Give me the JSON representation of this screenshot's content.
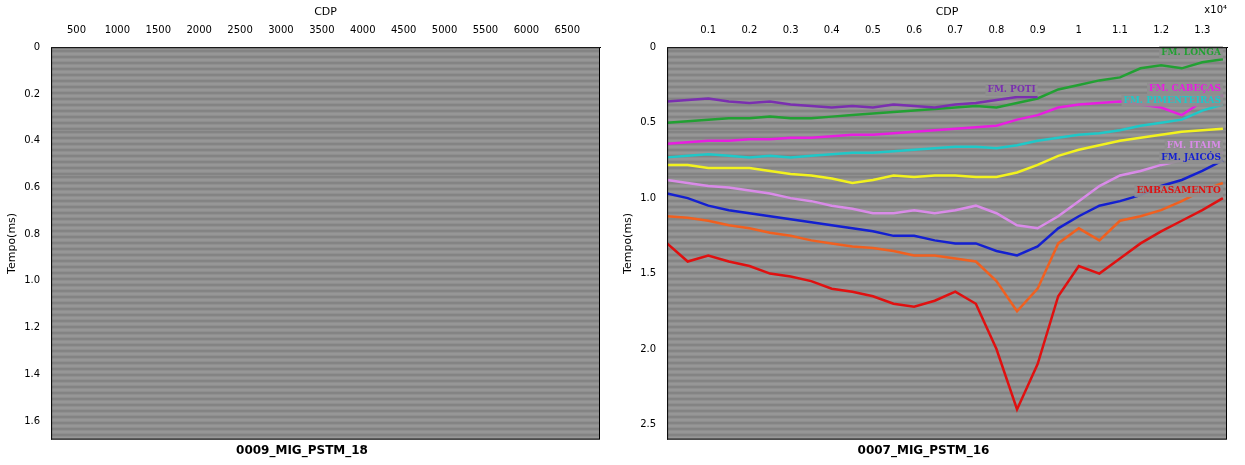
{
  "chart_data": [
    {
      "type": "seismic",
      "title": "0009_MIG_PSTM_18",
      "x_label": "CDP",
      "y_label": "Tempo(ms)",
      "xlim": [
        190,
        6900
      ],
      "xticks": [
        500,
        1000,
        1500,
        2000,
        2500,
        3000,
        3500,
        4000,
        4500,
        5000,
        5500,
        6000,
        6500
      ],
      "ylim": [
        0,
        1.68
      ],
      "yticks": [
        0,
        0.2,
        0.4,
        0.6,
        0.8,
        {
          "value": 1,
          "label": "1.0"
        },
        1.2,
        1.4,
        1.6
      ],
      "grid": false
    },
    {
      "type": "line",
      "title": "0007_MIG_PSTM_16",
      "x_label": "CDP",
      "y_label": "Tempo(ms)",
      "axis_multiplier": "x10⁴",
      "xlim": [
        0,
        1.36
      ],
      "xticks": [
        0.1,
        0.2,
        0.3,
        0.4,
        0.5,
        0.6,
        0.7,
        0.8,
        0.9,
        1,
        1.1,
        1.2,
        1.3
      ],
      "ylim": [
        0,
        2.6
      ],
      "yticks": [
        0,
        0.5,
        {
          "value": 1,
          "label": "1.0"
        },
        1.5,
        {
          "value": 2,
          "label": "2.0"
        },
        2.5
      ],
      "grid": false,
      "x": [
        0,
        0.05,
        0.1,
        0.15,
        0.2,
        0.25,
        0.3,
        0.35,
        0.4,
        0.45,
        0.5,
        0.55,
        0.6,
        0.65,
        0.7,
        0.75,
        0.8,
        0.85,
        0.9,
        0.95,
        1,
        1.05,
        1.1,
        1.15,
        1.2,
        1.25,
        1.3,
        1.35
      ],
      "series": [
        {
          "name": "FM. POTI",
          "color": "#7a2fb0",
          "values": [
            0.36,
            0.35,
            0.34,
            0.36,
            0.37,
            0.36,
            0.38,
            0.39,
            0.4,
            0.39,
            0.4,
            0.38,
            0.39,
            0.4,
            0.38,
            0.37,
            0.35,
            0.33,
            0.33,
            null,
            null,
            null,
            null,
            null,
            null,
            null,
            null,
            null
          ]
        },
        {
          "name": "FM. LONGA",
          "color": "#22a033",
          "values": [
            0.5,
            0.49,
            0.48,
            0.47,
            0.47,
            0.46,
            0.47,
            0.47,
            0.46,
            0.45,
            0.44,
            0.43,
            0.42,
            0.41,
            0.4,
            0.39,
            0.4,
            0.37,
            0.34,
            0.28,
            0.25,
            0.22,
            0.2,
            0.14,
            0.12,
            0.14,
            0.1,
            0.08
          ]
        },
        {
          "name": "FM. CABEÇAS",
          "color": "#e81ee0",
          "values": [
            0.64,
            0.63,
            0.62,
            0.62,
            0.61,
            0.61,
            0.6,
            0.6,
            0.59,
            0.58,
            0.58,
            0.57,
            0.56,
            0.55,
            0.54,
            0.53,
            0.52,
            0.48,
            0.45,
            0.4,
            0.38,
            0.37,
            0.36,
            0.38,
            0.4,
            0.45,
            0.36,
            0.32
          ]
        },
        {
          "name": "FM. PIMENTEIRAS",
          "color": "#1fc8c8",
          "values": [
            0.73,
            0.72,
            0.71,
            0.72,
            0.73,
            0.72,
            0.73,
            0.72,
            0.71,
            0.7,
            0.7,
            0.69,
            0.68,
            0.67,
            0.66,
            0.66,
            0.67,
            0.65,
            0.62,
            0.6,
            0.58,
            0.57,
            0.55,
            0.52,
            0.5,
            0.48,
            0.42,
            0.38
          ]
        },
        {
          "color": "#f2f21e",
          "values": [
            0.78,
            0.78,
            0.8,
            0.8,
            0.8,
            0.82,
            0.84,
            0.85,
            0.87,
            0.9,
            0.88,
            0.85,
            0.86,
            0.85,
            0.85,
            0.86,
            0.86,
            0.83,
            0.78,
            0.72,
            0.68,
            0.65,
            0.62,
            0.6,
            0.58,
            0.56,
            0.55,
            0.54
          ]
        },
        {
          "name": "FM. ITAIM",
          "color": "#d98be8",
          "values": [
            0.88,
            0.9,
            0.92,
            0.93,
            0.95,
            0.97,
            1,
            1.02,
            1.05,
            1.07,
            1.1,
            1.1,
            1.08,
            1.1,
            1.08,
            1.05,
            1.1,
            1.18,
            1.2,
            1.12,
            1.02,
            0.92,
            0.85,
            0.82,
            0.78,
            0.75,
            0.72,
            0.7
          ]
        },
        {
          "name": "FM. JAICÓS",
          "color": "#1420d0",
          "values": [
            0.97,
            1,
            1.05,
            1.08,
            1.1,
            1.12,
            1.14,
            1.16,
            1.18,
            1.2,
            1.22,
            1.25,
            1.25,
            1.28,
            1.3,
            1.3,
            1.35,
            1.38,
            1.32,
            1.2,
            1.12,
            1.05,
            1.02,
            0.98,
            0.92,
            0.88,
            0.82,
            0.75
          ]
        },
        {
          "color": "#f06020",
          "values": [
            1.12,
            1.13,
            1.15,
            1.18,
            1.2,
            1.23,
            1.25,
            1.28,
            1.3,
            1.32,
            1.33,
            1.35,
            1.38,
            1.38,
            1.4,
            1.42,
            1.55,
            1.75,
            1.6,
            1.3,
            1.2,
            1.28,
            1.15,
            1.12,
            1.08,
            1.02,
            0.95,
            0.9
          ]
        },
        {
          "name": "EMBASAMENTO",
          "color": "#e01010",
          "values": [
            1.3,
            1.42,
            1.38,
            1.42,
            1.45,
            1.5,
            1.52,
            1.55,
            1.6,
            1.62,
            1.65,
            1.7,
            1.72,
            1.68,
            1.62,
            1.7,
            2,
            2.4,
            2.1,
            1.65,
            1.45,
            1.5,
            1.4,
            1.3,
            1.22,
            1.15,
            1.08,
            1
          ]
        }
      ]
    }
  ]
}
